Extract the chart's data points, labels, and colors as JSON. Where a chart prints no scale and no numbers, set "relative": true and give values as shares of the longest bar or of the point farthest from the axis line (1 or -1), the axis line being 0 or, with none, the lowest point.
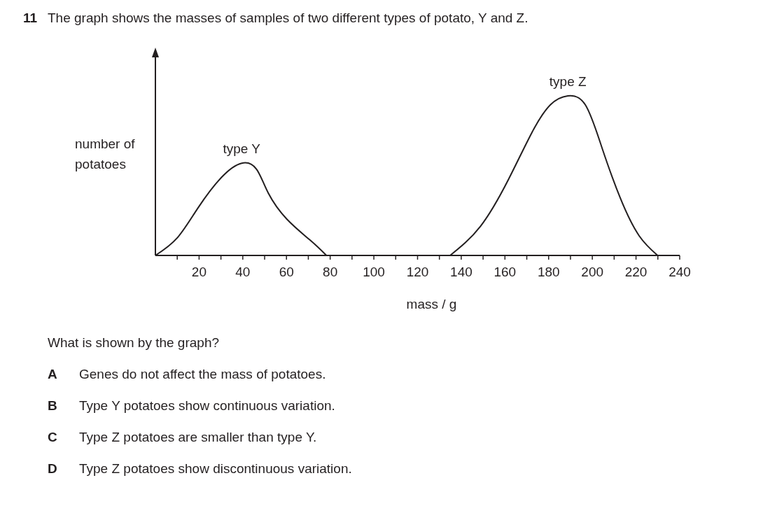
{
  "chart_data": {
    "type": "line",
    "title": "11 The graph shows the masses of samples of two different types of potato, Y and Z.",
    "xlabel": "mass / g",
    "ylabel": "number of potatoes",
    "relative": true,
    "marker": "none",
    "grid": false,
    "xlim": [
      0,
      240
    ],
    "xticks": [
      {
        "value": 10,
        "label": null
      },
      20,
      {
        "value": 30,
        "label": null
      },
      40,
      {
        "value": 50,
        "label": null
      },
      60,
      {
        "value": 70,
        "label": null
      },
      80,
      {
        "value": 90,
        "label": null
      },
      100,
      {
        "value": 110,
        "label": null
      },
      120,
      {
        "value": 130,
        "label": null
      },
      140,
      {
        "value": 150,
        "label": null
      },
      160,
      {
        "value": 170,
        "label": null
      },
      180,
      {
        "value": 190,
        "label": null
      },
      200,
      {
        "value": 210,
        "label": null
      },
      220,
      {
        "value": 230,
        "label": null
      },
      240
    ],
    "series": [
      {
        "name": "type Y",
        "color": "#231f20",
        "x": [
          0,
          10,
          19.6,
          30.3,
          39.5,
          46.3,
          51.7,
          60.2,
          70.9,
          78.3
        ],
        "values": [
          0,
          0.11,
          0.3,
          0.49,
          0.578,
          0.54,
          0.39,
          0.227,
          0.095,
          0
        ]
      },
      {
        "name": "type Z",
        "color": "#231f20",
        "x": [
          134.9,
          148.8,
          161.6,
          172.3,
          180.8,
          188.8,
          196.8,
          204.3,
          212.8,
          221.4,
          229.9
        ],
        "values": [
          0,
          0.183,
          0.476,
          0.769,
          0.944,
          1,
          0.944,
          0.68,
          0.36,
          0.124,
          0
        ]
      }
    ],
    "annotations": [
      "What is shown by the graph?",
      "A Genes do not affect the mass of potatoes.",
      "B Type Y potatoes show continuous variation.",
      "C Type Z potatoes are smaller than type Y.",
      "D Type Z potatoes show discontinuous variation."
    ]
  }
}
